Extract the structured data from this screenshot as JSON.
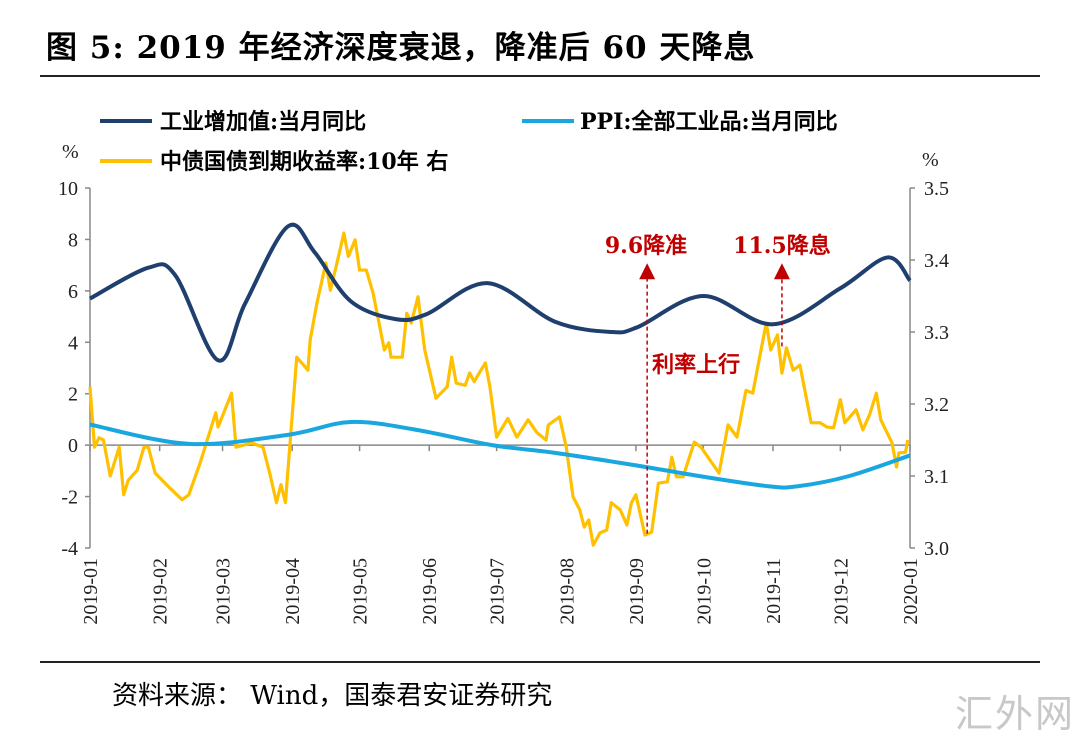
{
  "title": "图 5:  2019 年经济深度衰退，降准后 60 天降息",
  "source": "资料来源：  Wind，国泰君安证券研究",
  "watermark": "汇外网",
  "colors": {
    "industrial": "#1f3f6e",
    "ppi": "#1aa7e0",
    "yield": "#ffc000",
    "annotation": "#c00000"
  },
  "chart_data": {
    "type": "line",
    "title": "",
    "left_axis": {
      "unit": "%",
      "ylim": [
        -4,
        10
      ],
      "ticks": [
        "10",
        "8",
        "6",
        "4",
        "2",
        "0",
        "-2",
        "-4"
      ]
    },
    "right_axis": {
      "unit": "%",
      "ylim": [
        3.0,
        3.5
      ],
      "ticks": [
        "3.5",
        "3.4",
        "3.3",
        "3.2",
        "3.1",
        "3.0"
      ]
    },
    "x_ticks": [
      "2019-01",
      "2019-02",
      "2019-03",
      "2019-04",
      "2019-05",
      "2019-06",
      "2019-07",
      "2019-08",
      "2019-09",
      "2019-10",
      "2019-11",
      "2019-12",
      "2020-01"
    ],
    "legend": [
      "工业增加值:当月同比",
      "PPI:全部工业品:当月同比",
      "中债国债到期收益率:10年 右"
    ],
    "series": [
      {
        "name": "工业增加值:当月同比",
        "axis": "left",
        "smooth": true,
        "points": [
          [
            "2019-01-01",
            5.7
          ],
          [
            "2019-01-27",
            6.9
          ],
          [
            "2019-02-08",
            6.6
          ],
          [
            "2019-02-27",
            3.3
          ],
          [
            "2019-03-11",
            5.5
          ],
          [
            "2019-03-30",
            8.5
          ],
          [
            "2019-04-11",
            7.5
          ],
          [
            "2019-04-27",
            5.6
          ],
          [
            "2019-05-17",
            4.9
          ],
          [
            "2019-05-31",
            5.1
          ],
          [
            "2019-06-27",
            6.3
          ],
          [
            "2019-07-27",
            4.8
          ],
          [
            "2019-08-21",
            4.4
          ],
          [
            "2019-09-02",
            4.6
          ],
          [
            "2019-10-01",
            5.8
          ],
          [
            "2019-11-01",
            4.7
          ],
          [
            "2019-12-01",
            6.1
          ],
          [
            "2019-12-22",
            7.3
          ],
          [
            "2020-01-01",
            6.4
          ]
        ]
      },
      {
        "name": "PPI:全部工业品:当月同比",
        "axis": "left",
        "smooth": true,
        "points": [
          [
            "2019-01-01",
            0.8
          ],
          [
            "2019-02-14",
            0.05
          ],
          [
            "2019-03-30",
            0.4
          ],
          [
            "2019-04-27",
            0.9
          ],
          [
            "2019-05-26",
            0.6
          ],
          [
            "2019-06-29",
            0.0
          ],
          [
            "2019-07-27",
            -0.3
          ],
          [
            "2019-09-02",
            -0.8
          ],
          [
            "2019-09-29",
            -1.2
          ],
          [
            "2019-10-30",
            -1.6
          ],
          [
            "2019-11-12",
            -1.6
          ],
          [
            "2019-12-05",
            -1.2
          ],
          [
            "2020-01-01",
            -0.4
          ]
        ]
      },
      {
        "name": "中债国债到期收益率:10年 右",
        "axis": "right",
        "smooth": false,
        "points": [
          [
            "2019-01-01",
            3.224
          ],
          [
            "2019-01-03",
            3.14
          ],
          [
            "2019-01-05",
            3.153
          ],
          [
            "2019-01-07",
            3.15
          ],
          [
            "2019-01-10",
            3.1
          ],
          [
            "2019-01-14",
            3.14
          ],
          [
            "2019-01-16",
            3.074
          ],
          [
            "2019-01-18",
            3.094
          ],
          [
            "2019-01-22",
            3.108
          ],
          [
            "2019-01-25",
            3.14
          ],
          [
            "2019-01-27",
            3.14
          ],
          [
            "2019-01-30",
            3.104
          ],
          [
            "2019-02-05",
            3.085
          ],
          [
            "2019-02-11",
            3.067
          ],
          [
            "2019-02-14",
            3.074
          ],
          [
            "2019-02-19",
            3.118
          ],
          [
            "2019-02-26",
            3.188
          ],
          [
            "2019-02-27",
            3.168
          ],
          [
            "2019-03-05",
            3.215
          ],
          [
            "2019-03-07",
            3.14
          ],
          [
            "2019-03-14",
            3.146
          ],
          [
            "2019-03-19",
            3.14
          ],
          [
            "2019-03-22",
            3.104
          ],
          [
            "2019-03-25",
            3.063
          ],
          [
            "2019-03-27",
            3.088
          ],
          [
            "2019-03-29",
            3.063
          ],
          [
            "2019-04-03",
            3.265
          ],
          [
            "2019-04-08",
            3.247
          ],
          [
            "2019-04-09",
            3.289
          ],
          [
            "2019-04-12",
            3.34
          ],
          [
            "2019-04-16",
            3.396
          ],
          [
            "2019-04-18",
            3.358
          ],
          [
            "2019-04-22",
            3.41
          ],
          [
            "2019-04-24",
            3.4375
          ],
          [
            "2019-04-26",
            3.405
          ],
          [
            "2019-04-29",
            3.428
          ],
          [
            "2019-05-01",
            3.386
          ],
          [
            "2019-05-04",
            3.386
          ],
          [
            "2019-05-07",
            3.354
          ],
          [
            "2019-05-10",
            3.307
          ],
          [
            "2019-05-12",
            3.275
          ],
          [
            "2019-05-14",
            3.285
          ],
          [
            "2019-05-15",
            3.265
          ],
          [
            "2019-05-20",
            3.265
          ],
          [
            "2019-05-22",
            3.326
          ],
          [
            "2019-05-24",
            3.3125
          ],
          [
            "2019-05-27",
            3.349
          ],
          [
            "2019-05-30",
            3.275
          ],
          [
            "2019-06-04",
            3.208
          ],
          [
            "2019-06-09",
            3.224
          ],
          [
            "2019-06-11",
            3.265
          ],
          [
            "2019-06-13",
            3.229
          ],
          [
            "2019-06-17",
            3.226
          ],
          [
            "2019-06-19",
            3.243
          ],
          [
            "2019-06-21",
            3.231
          ],
          [
            "2019-06-24",
            3.247
          ],
          [
            "2019-06-26",
            3.257
          ],
          [
            "2019-06-28",
            3.224
          ],
          [
            "2019-07-01",
            3.154
          ],
          [
            "2019-07-06",
            3.18
          ],
          [
            "2019-07-10",
            3.154
          ],
          [
            "2019-07-15",
            3.178
          ],
          [
            "2019-07-19",
            3.16
          ],
          [
            "2019-07-23",
            3.15
          ],
          [
            "2019-07-24",
            3.171
          ],
          [
            "2019-07-29",
            3.182
          ],
          [
            "2019-08-01",
            3.14
          ],
          [
            "2019-08-04",
            3.071
          ],
          [
            "2019-08-07",
            3.053
          ],
          [
            "2019-08-09",
            3.029
          ],
          [
            "2019-08-11",
            3.039
          ],
          [
            "2019-08-13",
            3.004
          ],
          [
            "2019-08-16",
            3.021
          ],
          [
            "2019-08-19",
            3.025
          ],
          [
            "2019-08-21",
            3.063
          ],
          [
            "2019-08-25",
            3.053
          ],
          [
            "2019-08-28",
            3.032
          ],
          [
            "2019-08-30",
            3.063
          ],
          [
            "2019-09-01",
            3.074
          ],
          [
            "2019-09-05",
            3.018
          ],
          [
            "2019-09-08",
            3.022
          ],
          [
            "2019-09-11",
            3.09
          ],
          [
            "2019-09-15",
            3.092
          ],
          [
            "2019-09-17",
            3.126
          ],
          [
            "2019-09-19",
            3.099
          ],
          [
            "2019-09-22",
            3.099
          ],
          [
            "2019-09-27",
            3.147
          ],
          [
            "2019-09-30",
            3.14
          ],
          [
            "2019-10-08",
            3.104
          ],
          [
            "2019-10-12",
            3.171
          ],
          [
            "2019-10-16",
            3.154
          ],
          [
            "2019-10-20",
            3.219
          ],
          [
            "2019-10-23",
            3.215
          ],
          [
            "2019-10-29",
            3.3125
          ],
          [
            "2019-10-31",
            3.275
          ],
          [
            "2019-11-03",
            3.296
          ],
          [
            "2019-11-05",
            3.243
          ],
          [
            "2019-11-07",
            3.278
          ],
          [
            "2019-11-10",
            3.247
          ],
          [
            "2019-11-13",
            3.254
          ],
          [
            "2019-11-18",
            3.174
          ],
          [
            "2019-11-22",
            3.174
          ],
          [
            "2019-11-25",
            3.168
          ],
          [
            "2019-11-28",
            3.167
          ],
          [
            "2019-12-01",
            3.206
          ],
          [
            "2019-12-03",
            3.174
          ],
          [
            "2019-12-08",
            3.192
          ],
          [
            "2019-12-11",
            3.164
          ],
          [
            "2019-12-14",
            3.185
          ],
          [
            "2019-12-17",
            3.215
          ],
          [
            "2019-12-19",
            3.178
          ],
          [
            "2019-12-24",
            3.146
          ],
          [
            "2019-12-26",
            3.1125
          ],
          [
            "2019-12-27",
            3.132
          ],
          [
            "2019-12-30",
            3.133
          ],
          [
            "2019-12-31",
            3.15
          ]
        ]
      }
    ],
    "annotations": [
      {
        "text": "9.6降准",
        "date": "2019-09-06",
        "from": 3.02,
        "to": 3.39
      },
      {
        "text": "11.5降息",
        "date": "2019-11-05",
        "from": 3.28,
        "to": 3.39
      },
      {
        "text": "利率上行"
      }
    ]
  }
}
